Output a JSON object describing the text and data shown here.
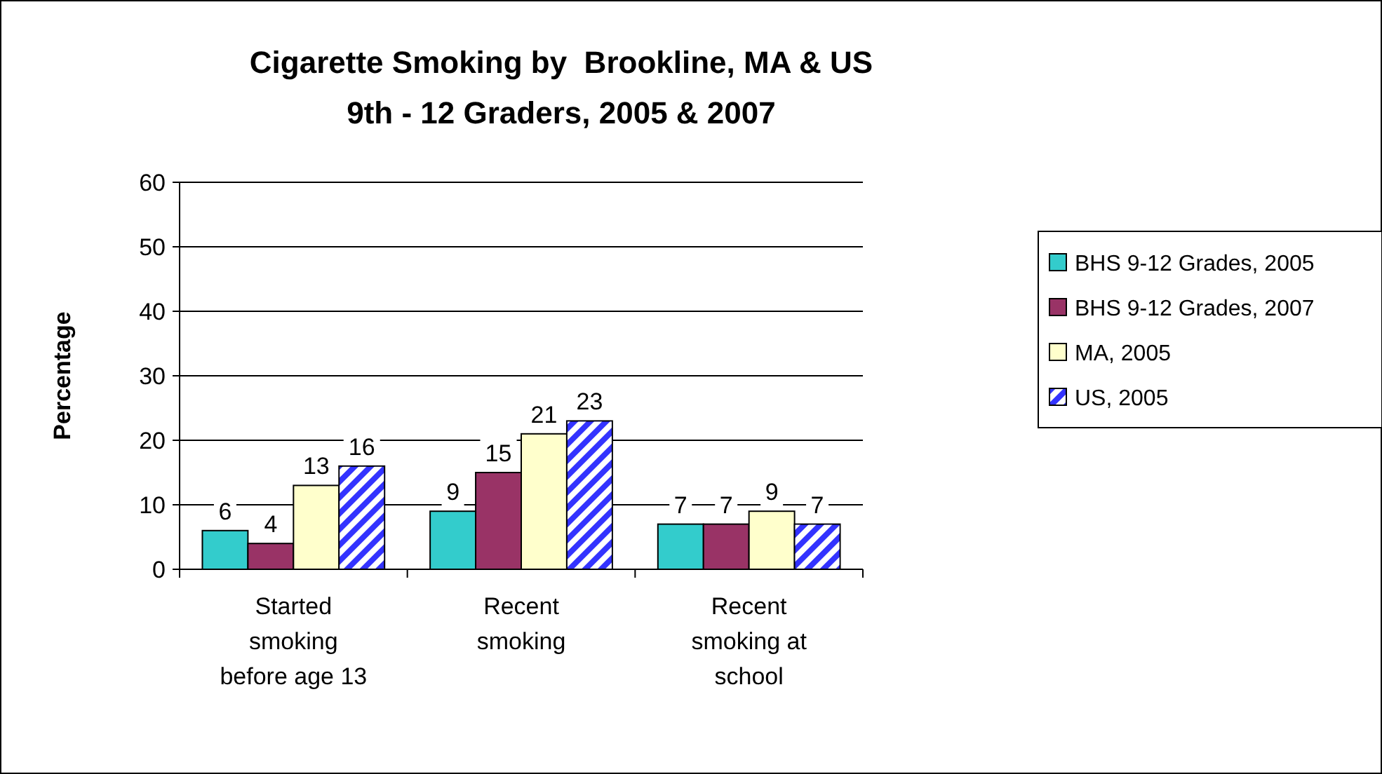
{
  "chart_data": {
    "type": "bar",
    "title": "Cigarette Smoking by  Brookline, MA & US",
    "subtitle": "9th - 12 Graders, 2005 & 2007",
    "ylabel": "Percentage",
    "categories": [
      "Started smoking before age 13",
      "Recent smoking",
      "Recent smoking at school"
    ],
    "series": [
      {
        "name": "BHS 9-12 Grades, 2005",
        "color": "#33cccc",
        "values": [
          6,
          9,
          7
        ]
      },
      {
        "name": "BHS 9-12 Grades, 2007",
        "color": "#993366",
        "values": [
          4,
          15,
          7
        ]
      },
      {
        "name": "MA, 2005",
        "color": "#ffffcc",
        "values": [
          13,
          21,
          9
        ]
      },
      {
        "name": "US, 2005",
        "color": "#3333ff",
        "values": [
          16,
          23,
          7
        ]
      }
    ],
    "ylim": [
      0,
      60
    ],
    "yticks": [
      0,
      10,
      20,
      30,
      40,
      50,
      60
    ],
    "grid": "y",
    "legend": "right",
    "data_labels": true
  }
}
